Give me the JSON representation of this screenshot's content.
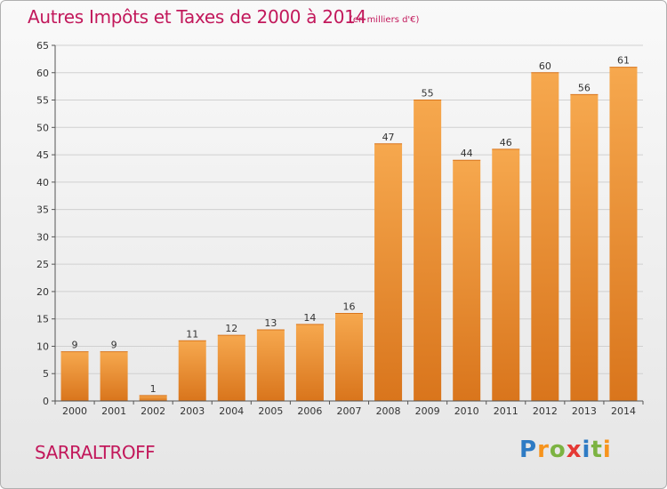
{
  "header": {
    "title": "Autres Impôts et Taxes de 2000 à 2014",
    "subtitle": "(en milliers d'€)"
  },
  "footer": {
    "city": "SARRALTROFF",
    "logo_letters": [
      {
        "ch": "P",
        "color": "#2e7bc4"
      },
      {
        "ch": "r",
        "color": "#f7941d"
      },
      {
        "ch": "o",
        "color": "#7cb342"
      },
      {
        "ch": "x",
        "color": "#e53935"
      },
      {
        "ch": "i",
        "color": "#2e7bc4"
      },
      {
        "ch": "t",
        "color": "#7cb342"
      },
      {
        "ch": "i",
        "color": "#f7941d"
      }
    ]
  },
  "colors": {
    "bar_light": "#f6a84e",
    "bar_dark": "#d9751c",
    "grid": "#d0d0d0",
    "axis": "#555555",
    "title": "#c2185b"
  },
  "chart_data": {
    "type": "bar",
    "title": "Autres Impôts et Taxes de 2000 à 2014",
    "subtitle": "(en milliers d'€)",
    "xlabel": "",
    "ylabel": "",
    "categories": [
      "2000",
      "2001",
      "2002",
      "2003",
      "2004",
      "2005",
      "2006",
      "2007",
      "2008",
      "2009",
      "2010",
      "2011",
      "2012",
      "2013",
      "2014"
    ],
    "values": [
      9,
      9,
      1,
      11,
      12,
      13,
      14,
      16,
      47,
      55,
      44,
      46,
      60,
      56,
      61
    ],
    "ylim": [
      0,
      65
    ],
    "yticks": [
      0,
      5,
      10,
      15,
      20,
      25,
      30,
      35,
      40,
      45,
      50,
      55,
      60,
      65
    ],
    "grid": true,
    "legend": "none"
  }
}
